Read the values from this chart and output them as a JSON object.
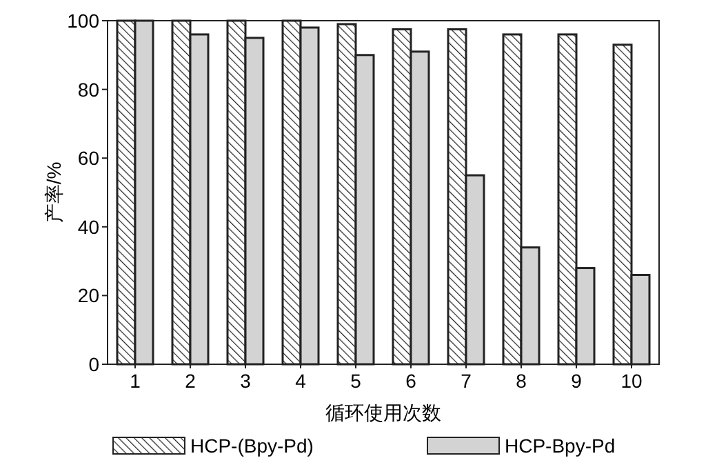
{
  "chart_data": {
    "type": "bar",
    "xlabel": "循环使用次数",
    "ylabel": "产率/%",
    "categories": [
      "1",
      "2",
      "3",
      "4",
      "5",
      "6",
      "7",
      "8",
      "9",
      "10"
    ],
    "series": [
      {
        "name": "HCP-(Bpy-Pd)",
        "color": "#222222",
        "values": [
          100,
          100,
          100,
          100,
          99,
          97.5,
          97.5,
          96,
          96,
          93
        ]
      },
      {
        "name": "HCP-Bpy-Pd",
        "color": "#d3d3d3",
        "values": [
          100,
          96,
          95,
          98,
          90,
          91,
          55,
          34,
          28,
          26
        ]
      }
    ],
    "ylim": [
      0,
      100
    ],
    "yticks": [
      0,
      20,
      40,
      60,
      80,
      100
    ],
    "legend": "bottom"
  }
}
